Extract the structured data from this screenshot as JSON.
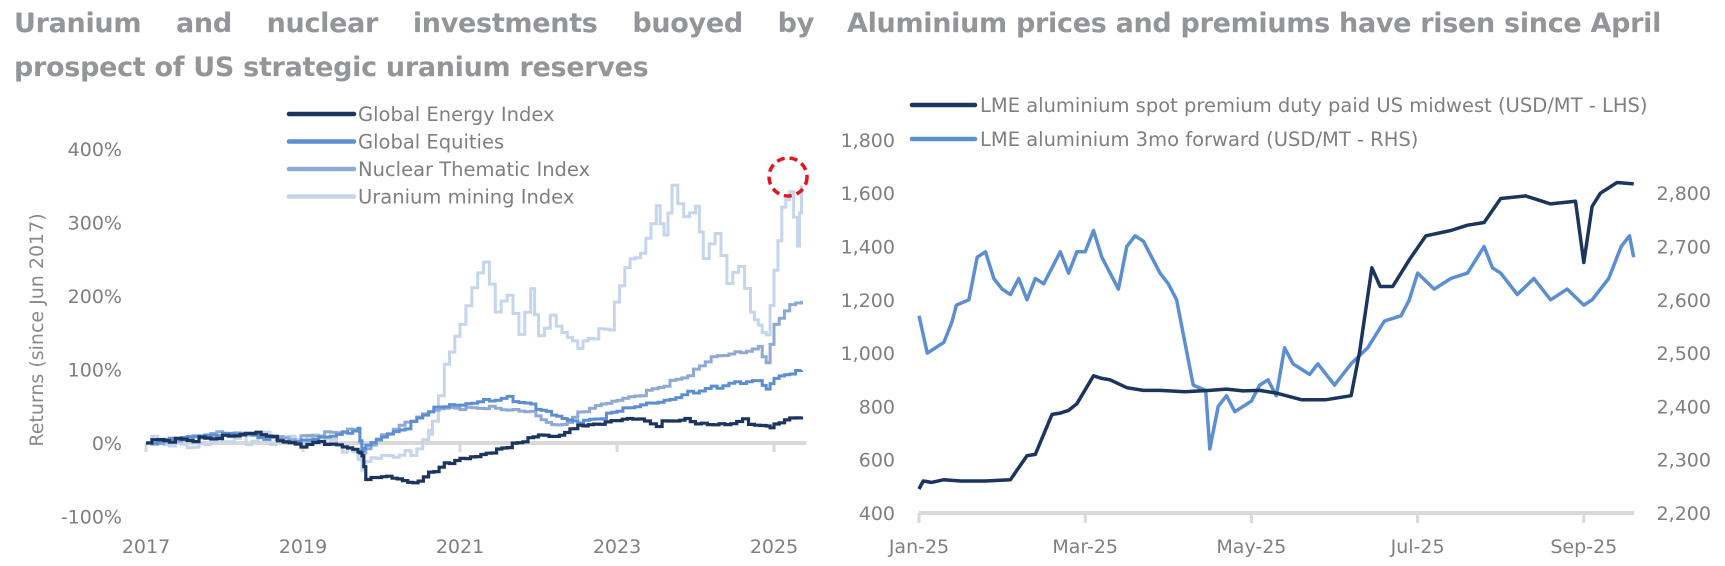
{
  "chart_data": [
    {
      "type": "line",
      "title": "Uranium and nuclear investments buoyed by prospect of US strategic uranium reserves",
      "xlabel": "",
      "ylabel": "Returns (since Jun 2017)",
      "x_tick_labels": [
        "2017",
        "2019",
        "2021",
        "2023",
        "2025"
      ],
      "y_tick_labels": [
        "400%",
        "300%",
        "200%",
        "100%",
        "0%",
        "-100%"
      ],
      "xlim": [
        2017.0,
        2025.35
      ],
      "ylim": [
        -100,
        400
      ],
      "legend_position": "top-center",
      "annotation": "red dashed circle highlighting latest Uranium mining Index peak",
      "colors": {
        "energy": "#1b355e",
        "equities": "#5b8fd1",
        "nuclear": "#8eaad4",
        "uranium": "#c5d6ec",
        "axis": "#d9d9d9",
        "highlight": "#e3161b"
      },
      "series": [
        {
          "name": "Global Energy Index",
          "color_key": "energy",
          "x": [
            2017.0,
            2017.3,
            2017.6,
            2017.9,
            2018.2,
            2018.4,
            2018.6,
            2018.9,
            2019.2,
            2019.5,
            2019.7,
            2019.75,
            2019.8,
            2020.0,
            2020.2,
            2020.4,
            2020.6,
            2020.8,
            2021.0,
            2021.2,
            2021.4,
            2021.6,
            2021.8,
            2022.0,
            2022.2,
            2022.4,
            2022.5,
            2022.7,
            2023.0,
            2023.2,
            2023.5,
            2023.8,
            2024.0,
            2024.3,
            2024.6,
            2024.9,
            2025.0,
            2025.2,
            2025.35
          ],
          "y": [
            0,
            2,
            5,
            10,
            15,
            18,
            10,
            -5,
            -2,
            -8,
            -15,
            -20,
            -50,
            -42,
            -45,
            -52,
            -40,
            -30,
            -25,
            -22,
            -15,
            -5,
            5,
            15,
            12,
            20,
            25,
            22,
            28,
            30,
            25,
            35,
            30,
            28,
            32,
            20,
            25,
            30,
            32
          ]
        },
        {
          "name": "Global Equities",
          "color_key": "equities",
          "x": [
            2017.0,
            2017.3,
            2017.6,
            2017.9,
            2018.2,
            2018.5,
            2018.9,
            2019.2,
            2019.5,
            2019.7,
            2019.75,
            2019.8,
            2020.0,
            2020.3,
            2020.6,
            2020.8,
            2021.0,
            2021.3,
            2021.6,
            2021.9,
            2022.1,
            2022.3,
            2022.5,
            2022.8,
            2023.0,
            2023.3,
            2023.6,
            2023.9,
            2024.2,
            2024.5,
            2024.8,
            2024.9,
            2025.0,
            2025.2,
            2025.35
          ],
          "y": [
            0,
            3,
            6,
            9,
            12,
            8,
            4,
            10,
            15,
            20,
            -10,
            -5,
            5,
            20,
            45,
            52,
            55,
            60,
            62,
            50,
            40,
            30,
            25,
            35,
            45,
            55,
            60,
            70,
            75,
            80,
            82,
            70,
            85,
            95,
            100
          ]
        },
        {
          "name": "Nuclear Thematic Index",
          "color_key": "nuclear",
          "x": [
            2017.0,
            2017.3,
            2017.6,
            2017.9,
            2018.2,
            2018.5,
            2018.9,
            2019.2,
            2019.5,
            2019.7,
            2019.75,
            2019.8,
            2020.0,
            2020.3,
            2020.6,
            2020.8,
            2021.0,
            2021.3,
            2021.6,
            2021.9,
            2022.1,
            2022.3,
            2022.5,
            2022.8,
            2023.0,
            2023.3,
            2023.6,
            2023.9,
            2024.2,
            2024.5,
            2024.8,
            2024.9,
            2025.0,
            2025.2,
            2025.35
          ],
          "y": [
            0,
            5,
            8,
            12,
            10,
            6,
            5,
            12,
            18,
            22,
            -15,
            -5,
            10,
            25,
            40,
            45,
            45,
            50,
            48,
            45,
            30,
            25,
            40,
            50,
            55,
            65,
            80,
            95,
            120,
            125,
            130,
            110,
            160,
            185,
            190
          ]
        },
        {
          "name": "Uranium mining Index",
          "color_key": "uranium",
          "x": [
            2017.0,
            2017.3,
            2017.6,
            2017.9,
            2018.2,
            2018.5,
            2018.9,
            2019.2,
            2019.5,
            2019.7,
            2019.75,
            2019.8,
            2020.0,
            2020.3,
            2020.6,
            2020.65,
            2020.8,
            2021.0,
            2021.15,
            2021.3,
            2021.45,
            2021.6,
            2021.75,
            2021.9,
            2022.0,
            2022.15,
            2022.3,
            2022.5,
            2022.7,
            2022.9,
            2023.1,
            2023.3,
            2023.5,
            2023.6,
            2023.7,
            2023.85,
            2024.0,
            2024.1,
            2024.25,
            2024.4,
            2024.55,
            2024.7,
            2024.8,
            2024.9,
            2025.0,
            2025.1,
            2025.2,
            2025.3,
            2025.35
          ],
          "y": [
            0,
            8,
            5,
            15,
            10,
            5,
            -5,
            0,
            -15,
            -25,
            -40,
            -20,
            -5,
            -10,
            10,
            30,
            100,
            150,
            200,
            240,
            180,
            210,
            160,
            220,
            150,
            170,
            140,
            120,
            140,
            160,
            250,
            270,
            330,
            290,
            350,
            300,
            310,
            240,
            280,
            220,
            250,
            190,
            170,
            150,
            230,
            310,
            330,
            260,
            350
          ]
        }
      ]
    },
    {
      "type": "line",
      "title": "Aluminium prices and premiums have risen since April",
      "xlabel": "",
      "ylabel": "",
      "x_tick_labels": [
        "Jan-25",
        "Mar-25",
        "May-25",
        "Jul-25",
        "Sep-25"
      ],
      "y_tick_labels_left": [
        "1,800",
        "1,600",
        "1,400",
        "1,200",
        "1,000",
        "800",
        "600",
        "400"
      ],
      "y_tick_labels_right": [
        "2,800",
        "2,700",
        "2,600",
        "2,500",
        "2,400",
        "2,300",
        "2,200"
      ],
      "ylim_left": [
        400,
        1800
      ],
      "ylim_right": [
        2200,
        2800
      ],
      "x_unit": "months since 1-Jan-2025",
      "xlim": [
        0,
        8.6
      ],
      "legend_position": "top-left",
      "colors": {
        "premium": "#1b355e",
        "forward": "#5b8fd1",
        "axis": "#d9d9d9"
      },
      "series": [
        {
          "name": "LME aluminium spot premium duty paid US midwest (USD/MT - LHS)",
          "axis": "left",
          "color_key": "premium",
          "x": [
            0,
            0.05,
            0.15,
            0.3,
            0.5,
            0.8,
            1.1,
            1.3,
            1.4,
            1.6,
            1.7,
            1.8,
            1.9,
            2.1,
            2.2,
            2.3,
            2.5,
            2.7,
            2.9,
            3.2,
            3.5,
            3.7,
            3.9,
            4.1,
            4.3,
            4.6,
            4.9,
            5.2,
            5.3,
            5.45,
            5.55,
            5.7,
            5.9,
            6.1,
            6.4,
            6.6,
            6.8,
            7.0,
            7.3,
            7.6,
            7.9,
            8.0,
            8.1,
            8.2,
            8.4,
            8.6
          ],
          "y": [
            490,
            520,
            515,
            525,
            520,
            520,
            525,
            615,
            620,
            770,
            775,
            785,
            810,
            915,
            905,
            900,
            870,
            860,
            860,
            855,
            860,
            865,
            858,
            860,
            850,
            825,
            825,
            840,
            1000,
            1320,
            1250,
            1250,
            1350,
            1440,
            1460,
            1480,
            1490,
            1580,
            1590,
            1560,
            1570,
            1340,
            1550,
            1600,
            1640,
            1635
          ]
        },
        {
          "name": "LME aluminium 3mo forward (USD/MT - RHS)",
          "axis": "right",
          "color_key": "forward",
          "x": [
            0,
            0.1,
            0.3,
            0.4,
            0.45,
            0.6,
            0.7,
            0.8,
            0.9,
            1.0,
            1.1,
            1.2,
            1.3,
            1.4,
            1.5,
            1.6,
            1.7,
            1.8,
            1.9,
            2.0,
            2.1,
            2.2,
            2.3,
            2.4,
            2.5,
            2.6,
            2.7,
            2.8,
            2.9,
            3.0,
            3.1,
            3.2,
            3.3,
            3.45,
            3.5,
            3.6,
            3.7,
            3.8,
            4.0,
            4.1,
            4.2,
            4.3,
            4.4,
            4.5,
            4.6,
            4.7,
            4.8,
            5.0,
            5.2,
            5.4,
            5.6,
            5.8,
            5.9,
            6.0,
            6.2,
            6.4,
            6.6,
            6.8,
            6.9,
            7.0,
            7.2,
            7.4,
            7.6,
            7.8,
            8.0,
            8.1,
            8.3,
            8.45,
            8.55,
            8.6
          ],
          "y": [
            2570,
            2500,
            2520,
            2560,
            2590,
            2600,
            2680,
            2690,
            2640,
            2620,
            2610,
            2640,
            2600,
            2640,
            2630,
            2660,
            2690,
            2650,
            2690,
            2690,
            2730,
            2680,
            2650,
            2620,
            2700,
            2720,
            2710,
            2680,
            2650,
            2630,
            2600,
            2520,
            2440,
            2430,
            2320,
            2400,
            2420,
            2390,
            2410,
            2440,
            2450,
            2420,
            2510,
            2480,
            2470,
            2460,
            2480,
            2440,
            2480,
            2510,
            2560,
            2570,
            2600,
            2650,
            2620,
            2640,
            2650,
            2700,
            2660,
            2650,
            2610,
            2640,
            2600,
            2620,
            2590,
            2600,
            2640,
            2700,
            2720,
            2680
          ]
        }
      ]
    }
  ]
}
